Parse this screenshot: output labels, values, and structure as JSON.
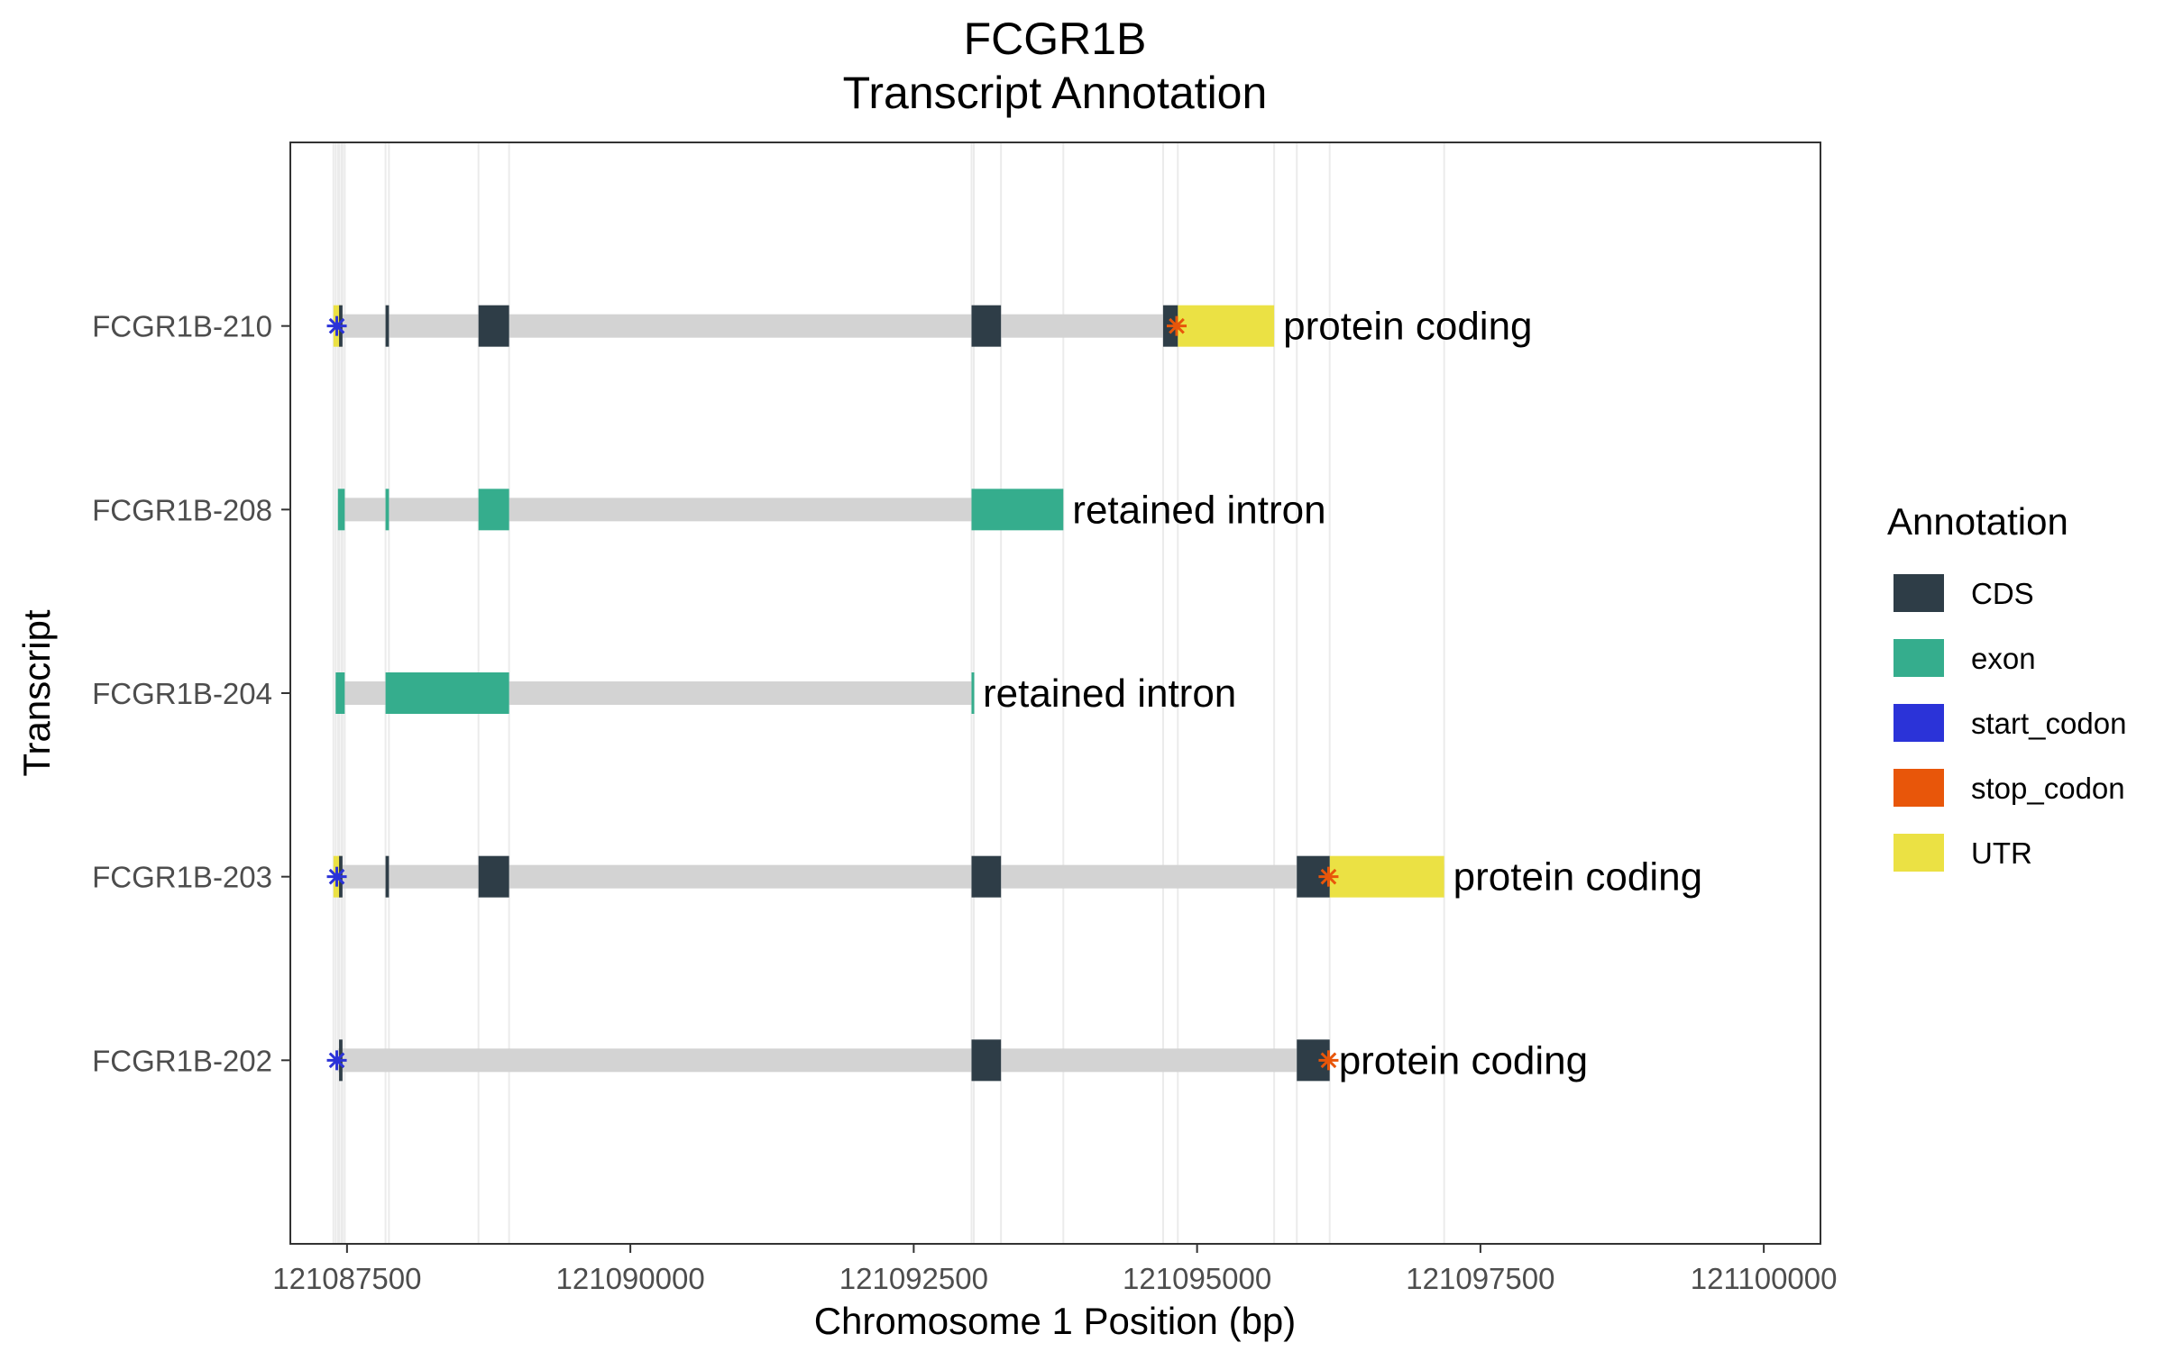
{
  "chart_data": {
    "type": "gene-transcript-annotation",
    "title": "FCGR1B",
    "subtitle": "Transcript Annotation",
    "xlabel": "Chromosome 1 Position (bp)",
    "ylabel": "Transcript",
    "xlim": [
      121087000,
      121100500
    ],
    "x_ticks": [
      121087500,
      121090000,
      121092500,
      121095000,
      121097500,
      121100000
    ],
    "x_tick_labels": [
      "121087500",
      "121090000",
      "121092500",
      "121095000",
      "121097500",
      "121100000"
    ],
    "grid": true,
    "legend_position": "right",
    "legend": {
      "title": "Annotation",
      "entries": [
        {
          "label": "CDS",
          "color": "#2e3d47"
        },
        {
          "label": "exon",
          "color": "#35ad8d"
        },
        {
          "label": "start_codon",
          "color": "#2b33d8"
        },
        {
          "label": "stop_codon",
          "color": "#e8560a"
        },
        {
          "label": "UTR",
          "color": "#ebe144"
        }
      ]
    },
    "colors": {
      "CDS": "#2e3d47",
      "exon": "#35ad8d",
      "start_codon": "#2b33d8",
      "stop_codon": "#e8560a",
      "UTR": "#ebe144",
      "intron": "#d3d3d3"
    },
    "transcripts": [
      {
        "name": "FCGR1B-210",
        "biotype": "protein coding",
        "start": 121087380,
        "end": 121095680,
        "features": [
          {
            "type": "UTR",
            "start": 121087380,
            "end": 121087450
          },
          {
            "type": "CDS",
            "start": 121087430,
            "end": 121087460
          },
          {
            "type": "CDS",
            "start": 121087840,
            "end": 121087870
          },
          {
            "type": "CDS",
            "start": 121088660,
            "end": 121088930
          },
          {
            "type": "CDS",
            "start": 121093010,
            "end": 121093270
          },
          {
            "type": "CDS",
            "start": 121094700,
            "end": 121094830
          },
          {
            "type": "UTR",
            "start": 121094830,
            "end": 121095680
          },
          {
            "type": "start_codon",
            "start": 121087400,
            "end": 121087420
          },
          {
            "type": "stop_codon",
            "start": 121094810,
            "end": 121094830
          }
        ]
      },
      {
        "name": "FCGR1B-208",
        "biotype": "retained intron",
        "start": 121087420,
        "end": 121093820,
        "features": [
          {
            "type": "exon",
            "start": 121087420,
            "end": 121087480
          },
          {
            "type": "exon",
            "start": 121087840,
            "end": 121087870
          },
          {
            "type": "exon",
            "start": 121088660,
            "end": 121088930
          },
          {
            "type": "exon",
            "start": 121093010,
            "end": 121093820
          }
        ]
      },
      {
        "name": "FCGR1B-204",
        "biotype": "retained intron",
        "start": 121087400,
        "end": 121093030,
        "features": [
          {
            "type": "exon",
            "start": 121087400,
            "end": 121087480
          },
          {
            "type": "exon",
            "start": 121087840,
            "end": 121088930
          },
          {
            "type": "exon",
            "start": 121093010,
            "end": 121093030
          }
        ]
      },
      {
        "name": "FCGR1B-203",
        "biotype": "protein coding",
        "start": 121087380,
        "end": 121097180,
        "features": [
          {
            "type": "UTR",
            "start": 121087380,
            "end": 121087450
          },
          {
            "type": "CDS",
            "start": 121087430,
            "end": 121087460
          },
          {
            "type": "CDS",
            "start": 121087840,
            "end": 121087870
          },
          {
            "type": "CDS",
            "start": 121088660,
            "end": 121088930
          },
          {
            "type": "CDS",
            "start": 121093010,
            "end": 121093270
          },
          {
            "type": "CDS",
            "start": 121095880,
            "end": 121096170
          },
          {
            "type": "UTR",
            "start": 121096170,
            "end": 121097180
          },
          {
            "type": "start_codon",
            "start": 121087400,
            "end": 121087420
          },
          {
            "type": "stop_codon",
            "start": 121096150,
            "end": 121096170
          }
        ]
      },
      {
        "name": "FCGR1B-202",
        "biotype": "protein coding",
        "start": 121087420,
        "end": 121096170,
        "features": [
          {
            "type": "CDS",
            "start": 121087430,
            "end": 121087460
          },
          {
            "type": "CDS",
            "start": 121093010,
            "end": 121093270
          },
          {
            "type": "CDS",
            "start": 121095880,
            "end": 121096170
          },
          {
            "type": "start_codon",
            "start": 121087400,
            "end": 121087420
          },
          {
            "type": "stop_codon",
            "start": 121096150,
            "end": 121096170
          }
        ]
      }
    ]
  }
}
